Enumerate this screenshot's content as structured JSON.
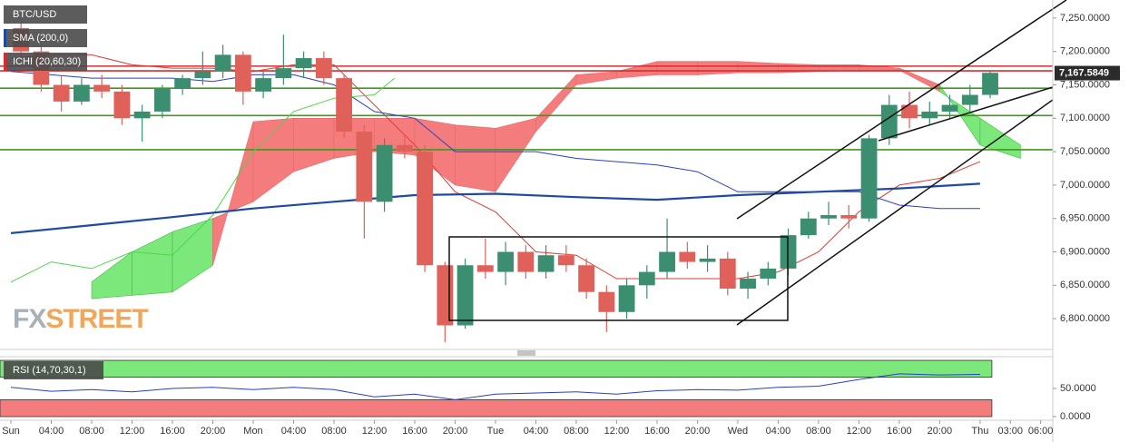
{
  "chart_data": [
    {
      "type": "candlestick",
      "symbol": "BTC/USD",
      "x": [
        1,
        3,
        5,
        7,
        9,
        11,
        13,
        15,
        17,
        19,
        21,
        23,
        25,
        27,
        29,
        31,
        33,
        35,
        37,
        39,
        41,
        43,
        45,
        47,
        49,
        51,
        53,
        55,
        57,
        59,
        61,
        63,
        65,
        67,
        69,
        71,
        73,
        75,
        77,
        79,
        81,
        83,
        85,
        87,
        89,
        91,
        93,
        95,
        97
      ],
      "open": [
        7235,
        7200,
        7150,
        7125,
        7150,
        7140,
        7100,
        7110,
        7145,
        7160,
        7170,
        7195,
        7140,
        7160,
        7175,
        7190,
        7160,
        7080,
        6975,
        7060,
        7050,
        6880,
        6790,
        6880,
        6870,
        6900,
        6870,
        6895,
        6880,
        6840,
        6810,
        6850,
        6870,
        6900,
        6885,
        6890,
        6845,
        6860,
        6875,
        6925,
        6950,
        6955,
        6950,
        7070,
        7120,
        7100,
        7110,
        7120,
        7135
      ],
      "high": [
        7245,
        7210,
        7165,
        7160,
        7165,
        7150,
        7120,
        7150,
        7165,
        7200,
        7210,
        7200,
        7170,
        7225,
        7200,
        7200,
        7165,
        7090,
        7070,
        7075,
        7060,
        6885,
        6890,
        6920,
        6915,
        6910,
        6910,
        6910,
        6890,
        6850,
        6860,
        6880,
        6950,
        6915,
        6910,
        6900,
        6870,
        6885,
        6935,
        6960,
        6975,
        6970,
        7075,
        7135,
        7140,
        7125,
        7135,
        7150,
        7172
      ],
      "low": [
        7190,
        7140,
        7110,
        7120,
        7130,
        7090,
        7065,
        7100,
        7135,
        7150,
        7160,
        7120,
        7130,
        7150,
        7160,
        7150,
        7070,
        6920,
        6960,
        7040,
        6870,
        6765,
        6785,
        6860,
        6850,
        6860,
        6860,
        6870,
        6830,
        6780,
        6800,
        6830,
        6860,
        6875,
        6870,
        6835,
        6830,
        6850,
        6865,
        6920,
        6940,
        6935,
        6945,
        7060,
        7085,
        7090,
        7100,
        7110,
        7130
      ],
      "close": [
        7200,
        7150,
        7125,
        7150,
        7140,
        7100,
        7110,
        7145,
        7160,
        7170,
        7195,
        7140,
        7160,
        7175,
        7190,
        7160,
        7080,
        6975,
        7060,
        7050,
        6880,
        6790,
        6880,
        6870,
        6900,
        6870,
        6895,
        6880,
        6840,
        6810,
        6850,
        6870,
        6900,
        6885,
        6890,
        6845,
        6860,
        6875,
        6925,
        6950,
        6955,
        6950,
        7070,
        7120,
        7100,
        7110,
        7120,
        7135,
        7168
      ],
      "up_color": "#3b8f70",
      "down_color": "#e0605a",
      "indicators": [
        {
          "name": "SMA (200,0)",
          "color": "#1f4aa3",
          "x": [
            0,
            8,
            16,
            24,
            32,
            40,
            48,
            56,
            64,
            72,
            80,
            88,
            96
          ],
          "values": [
            6928,
            6940,
            6952,
            6965,
            6975,
            6985,
            6987,
            6982,
            6978,
            6985,
            6990,
            6995,
            7002
          ]
        }
      ],
      "ichimoku": {
        "name": "ICHI (20,60,30)",
        "color": "#d32f2f",
        "conversion": {
          "color": "#e53935",
          "x": [
            0,
            4,
            8,
            12,
            16,
            20,
            24,
            28,
            32,
            36,
            40,
            44,
            48,
            52,
            56,
            60,
            64,
            68,
            72,
            76,
            80,
            84,
            88,
            92,
            96
          ],
          "values": [
            7190,
            7195,
            7195,
            7180,
            7175,
            7175,
            7170,
            7180,
            7180,
            7120,
            7060,
            6990,
            6960,
            6900,
            6895,
            6860,
            6860,
            6860,
            6860,
            6870,
            6900,
            6960,
            7000,
            7010,
            7035
          ]
        },
        "base": {
          "color": "#2a3fc4",
          "x": [
            0,
            4,
            8,
            12,
            16,
            20,
            24,
            28,
            32,
            36,
            40,
            44,
            48,
            52,
            56,
            60,
            64,
            68,
            72,
            76,
            80,
            84,
            88,
            92,
            96
          ],
          "values": [
            7170,
            7165,
            7160,
            7160,
            7160,
            7155,
            7165,
            7165,
            7150,
            7110,
            7100,
            7050,
            7050,
            7050,
            7040,
            7035,
            7030,
            7020,
            6990,
            6990,
            6990,
            6990,
            6970,
            6965,
            6965
          ]
        },
        "lagging": {
          "color": "#4cd64c",
          "x": [
            0,
            4,
            8,
            12,
            16,
            20,
            24,
            28,
            32,
            36,
            38
          ],
          "values": [
            6855,
            6885,
            6875,
            6900,
            6895,
            6955,
            7050,
            7110,
            7130,
            7135,
            7160
          ]
        },
        "span_x": [
          8,
          12,
          16,
          20,
          24,
          28,
          32,
          36,
          40,
          44,
          48,
          52,
          56,
          60,
          64,
          68,
          72,
          76,
          80,
          84,
          88,
          92,
          96,
          100
        ],
        "span_a": [
          6855,
          6900,
          6930,
          6950,
          6975,
          7020,
          7040,
          7050,
          7045,
          7000,
          6990,
          7080,
          7150,
          7160,
          7165,
          7165,
          7168,
          7168,
          7170,
          7172,
          7172,
          7140,
          7100,
          7060
        ],
        "span_b": [
          6830,
          6835,
          6840,
          6880,
          7095,
          7100,
          7100,
          7100,
          7100,
          7090,
          7085,
          7100,
          7165,
          7170,
          7185,
          7185,
          7185,
          7182,
          7180,
          7180,
          7175,
          7150,
          7060,
          7040
        ],
        "cloud_up_color": "#7ce87c",
        "cloud_down_color": "#f47c7c"
      },
      "levels": [
        {
          "value": 7178,
          "color": "#d32f2f"
        },
        {
          "value": 7171,
          "color": "#d32f2f"
        },
        {
          "value": 7145,
          "color": "#3c9a1c"
        },
        {
          "value": 7104,
          "color": "#3c9a1c"
        },
        {
          "value": 7053,
          "color": "#3c9a1c"
        }
      ],
      "last_price": {
        "value": 7167.5849,
        "label": "7,167.5849"
      },
      "watermark": [
        "FX",
        "STREET"
      ],
      "xlim": [
        -1.08,
        103.2
      ],
      "ylim": [
        6754,
        7277
      ],
      "yticks": [
        {
          "value": 6800,
          "label": "6,800.0000"
        },
        {
          "value": 6850,
          "label": "6,850.0000"
        },
        {
          "value": 6900,
          "label": "6,900.0000"
        },
        {
          "value": 6950,
          "label": "6,950.0000"
        },
        {
          "value": 7000,
          "label": "7,000.0000"
        },
        {
          "value": 7050,
          "label": "7,050.0000"
        },
        {
          "value": 7100,
          "label": "7,100.0000"
        },
        {
          "value": 7150,
          "label": "7,150.0000"
        },
        {
          "value": 7200,
          "label": "7,200.0000"
        },
        {
          "value": 7250,
          "label": "7,250.0000"
        }
      ],
      "xticks": [
        {
          "value": 0,
          "label": "Sun"
        },
        {
          "value": 4,
          "label": "04:00"
        },
        {
          "value": 8,
          "label": "08:00"
        },
        {
          "value": 12,
          "label": "12:00"
        },
        {
          "value": 16,
          "label": "16:00"
        },
        {
          "value": 20,
          "label": "20:00"
        },
        {
          "value": 24,
          "label": "Mon"
        },
        {
          "value": 28,
          "label": "04:00"
        },
        {
          "value": 32,
          "label": "08:00"
        },
        {
          "value": 36,
          "label": "12:00"
        },
        {
          "value": 40,
          "label": "16:00"
        },
        {
          "value": 44,
          "label": "20:00"
        },
        {
          "value": 48,
          "label": "Tue"
        },
        {
          "value": 52,
          "label": "04:00"
        },
        {
          "value": 56,
          "label": "08:00"
        },
        {
          "value": 60,
          "label": "12:00"
        },
        {
          "value": 64,
          "label": "16:00"
        },
        {
          "value": 68,
          "label": "20:00"
        },
        {
          "value": 72,
          "label": "Wed"
        },
        {
          "value": 76,
          "label": "04:00"
        },
        {
          "value": 80,
          "label": "08:00"
        },
        {
          "value": 84,
          "label": "12:00"
        },
        {
          "value": 88,
          "label": "16:00"
        },
        {
          "value": 92,
          "label": "20:00"
        },
        {
          "value": 96,
          "label": "Thu"
        },
        {
          "value": 99,
          "label": "03:00"
        },
        {
          "value": 102,
          "label": "06:00"
        }
      ]
    },
    {
      "type": "line",
      "name": "RSI (14,70,30,1)",
      "color": "#2a3fc4",
      "x": [
        0,
        4,
        8,
        12,
        16,
        20,
        24,
        28,
        32,
        36,
        40,
        44,
        48,
        52,
        56,
        60,
        64,
        68,
        72,
        76,
        80,
        84,
        88,
        92,
        96
      ],
      "values": [
        52,
        45,
        48,
        44,
        50,
        52,
        48,
        52,
        48,
        35,
        40,
        30,
        40,
        42,
        44,
        40,
        46,
        48,
        47,
        52,
        54,
        66,
        76,
        74,
        75
      ],
      "bands": [
        {
          "from": 70,
          "to": 100,
          "color": "#7ce87c"
        },
        {
          "from": 0,
          "to": 30,
          "color": "#f47c7c"
        }
      ],
      "xlim": [
        -1.08,
        103.2
      ],
      "ylim": [
        -4.8,
        106.5
      ],
      "yticks": [
        {
          "value": 0,
          "label": "0.0000"
        },
        {
          "value": 50,
          "label": "50.0000"
        }
      ]
    }
  ]
}
